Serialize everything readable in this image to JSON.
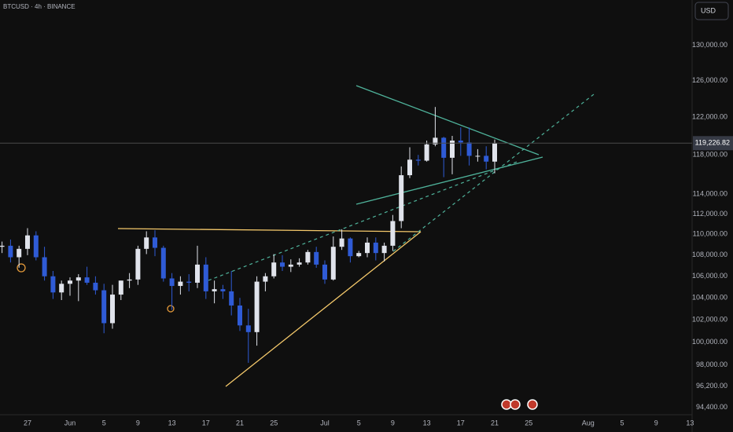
{
  "chart_data": {
    "type": "candlestick",
    "title": "BTCUSD · 4h · BINANCE",
    "currency": "USD",
    "log_scale": true,
    "grid": false,
    "up_color": "#e0e3eb",
    "down_color": "#2f5bd6",
    "categories": [
      null,
      null,
      null,
      "27",
      null,
      null,
      null,
      null,
      "Jun",
      null,
      null,
      null,
      "5",
      null,
      null,
      null,
      "9",
      null,
      null,
      null,
      "13",
      null,
      null,
      null,
      "17",
      null,
      null,
      null,
      "21",
      null,
      null,
      null,
      "25",
      null,
      null,
      null,
      null,
      null,
      "Jul",
      null,
      null,
      null,
      "5",
      null,
      null,
      null,
      "9",
      null,
      null,
      null,
      "13",
      null,
      null,
      null,
      "17",
      null,
      null,
      null,
      "21",
      null,
      null,
      null,
      "25",
      null,
      null,
      null,
      null,
      null,
      null,
      "Aug",
      null,
      null,
      null,
      "5",
      null,
      null,
      null,
      "9",
      null,
      null,
      null,
      "13"
    ],
    "ohlc": [
      [
        108800,
        109300,
        108200,
        108900
      ],
      [
        108900,
        109500,
        107300,
        107800
      ],
      [
        107800,
        108900,
        106800,
        108600
      ],
      [
        108600,
        110600,
        108000,
        109900
      ],
      [
        109900,
        110300,
        107500,
        107800
      ],
      [
        107800,
        108800,
        105600,
        106000
      ],
      [
        106000,
        106500,
        103900,
        104500
      ],
      [
        104500,
        105600,
        103800,
        105300
      ],
      [
        105300,
        105900,
        104200,
        105600
      ],
      [
        105600,
        106200,
        103700,
        105900
      ],
      [
        105900,
        106900,
        105200,
        105400
      ],
      [
        105400,
        106000,
        104300,
        104700
      ],
      [
        104700,
        105300,
        100800,
        101700
      ],
      [
        101700,
        105200,
        101200,
        104300
      ],
      [
        104300,
        105600,
        103800,
        105600
      ],
      [
        105600,
        106300,
        104900,
        105700
      ],
      [
        105700,
        108900,
        105200,
        108600
      ],
      [
        108600,
        110300,
        108100,
        109700
      ],
      [
        109700,
        110400,
        107900,
        108700
      ],
      [
        108700,
        108900,
        105500,
        105800
      ],
      [
        105800,
        106300,
        102900,
        105100
      ],
      [
        105100,
        106000,
        104300,
        105500
      ],
      [
        105500,
        106200,
        104600,
        105400
      ],
      [
        105400,
        108900,
        104900,
        107100
      ],
      [
        107100,
        107800,
        103900,
        104600
      ],
      [
        104600,
        105600,
        103500,
        104800
      ],
      [
        104800,
        105200,
        103900,
        104600
      ],
      [
        104600,
        106500,
        102400,
        103300
      ],
      [
        103300,
        104000,
        101000,
        101500
      ],
      [
        101500,
        103000,
        98200,
        100900
      ],
      [
        100900,
        106000,
        99700,
        105500
      ],
      [
        105500,
        106300,
        104600,
        106000
      ],
      [
        106000,
        108100,
        105800,
        107300
      ],
      [
        107300,
        108000,
        106500,
        106900
      ],
      [
        106900,
        107600,
        106400,
        107100
      ],
      [
        107100,
        107700,
        106900,
        107300
      ],
      [
        107300,
        108500,
        107100,
        108300
      ],
      [
        108300,
        108800,
        106800,
        107100
      ],
      [
        107100,
        107500,
        105300,
        105700
      ],
      [
        105700,
        109800,
        105600,
        108800
      ],
      [
        108800,
        110500,
        108500,
        109600
      ],
      [
        109600,
        109700,
        107300,
        107900
      ],
      [
        107900,
        108400,
        107800,
        108200
      ],
      [
        108200,
        109700,
        107800,
        109200
      ],
      [
        109200,
        109700,
        107500,
        108200
      ],
      [
        108200,
        109200,
        107400,
        108900
      ],
      [
        108900,
        111900,
        108400,
        111300
      ],
      [
        111300,
        116800,
        110600,
        115900
      ],
      [
        115900,
        118800,
        115600,
        117500
      ],
      [
        117500,
        118000,
        116900,
        117400
      ],
      [
        117400,
        119500,
        117300,
        119100
      ],
      [
        119100,
        123100,
        118900,
        119800
      ],
      [
        119800,
        119900,
        115700,
        117700
      ],
      [
        117700,
        120000,
        116000,
        119500
      ],
      [
        119500,
        120900,
        117900,
        119300
      ],
      [
        119300,
        120900,
        116900,
        117900
      ],
      [
        117900,
        118600,
        117300,
        117900
      ],
      [
        117900,
        118900,
        116500,
        117300
      ],
      [
        117300,
        119600,
        116100,
        119200
      ],
      null,
      null,
      null,
      null,
      null,
      null,
      null,
      null,
      null,
      null,
      null,
      null,
      null,
      null,
      null,
      null,
      null,
      null,
      null,
      null,
      null,
      null,
      null
    ],
    "ylim": [
      93800,
      135300
    ],
    "yticks": [
      {
        "value": 130000,
        "label": "130,000.00"
      },
      {
        "value": 126000,
        "label": "126,000.00"
      },
      {
        "value": 122000,
        "label": "122,000.00"
      },
      {
        "value": 118000,
        "label": "118,000.00"
      },
      {
        "value": 114000,
        "label": "114,000.00"
      },
      {
        "value": 112000,
        "label": "112,000.00"
      },
      {
        "value": 110000,
        "label": "110,000.00"
      },
      {
        "value": 108000,
        "label": "108,000.00"
      },
      {
        "value": 106000,
        "label": "106,000.00"
      },
      {
        "value": 104000,
        "label": "104,000.00"
      },
      {
        "value": 102000,
        "label": "102,000.00"
      },
      {
        "value": 100000,
        "label": "100,000.00"
      },
      {
        "value": 98000,
        "label": "98,000.00"
      },
      {
        "value": 96200,
        "label": "96,200.00"
      },
      {
        "value": 94400,
        "label": "94,400.00"
      }
    ],
    "last_price": {
      "value": 119226.82,
      "label": "119,226.82"
    }
  }
}
